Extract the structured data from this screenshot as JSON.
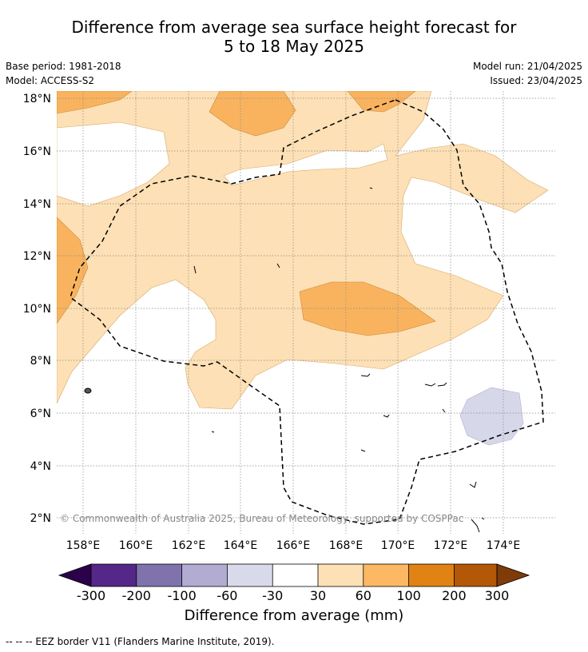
{
  "title": {
    "line1": "Difference from average sea surface height forecast for",
    "line2": "5 to 18 May 2025"
  },
  "meta": {
    "base_period": "Base period: 1981-2018",
    "model": "Model: ACCESS-S2",
    "model_run": "Model run: 21/04/2025",
    "issued": "Issued: 23/04/2025"
  },
  "map": {
    "lat_range": [
      1.4,
      18.3
    ],
    "lon_range": [
      157.0,
      175.0
    ],
    "lat_ticks": [
      "18°N",
      "16°N",
      "14°N",
      "12°N",
      "10°N",
      "8°N",
      "6°N",
      "4°N",
      "2°N"
    ],
    "lon_ticks": [
      "158°E",
      "160°E",
      "162°E",
      "164°E",
      "166°E",
      "168°E",
      "170°E",
      "172°E",
      "174°E"
    ],
    "copyright": "© Commonwealth of Australia 2025, Bureau of Meteorology, supported by COSPPac",
    "colors": {
      "c_30_60": "#fde0b5",
      "c_60_100": "#f9b35f",
      "c_m60_m30": "#d7d7ea",
      "coast": "#000000",
      "grid": "#888888"
    }
  },
  "colorbar": {
    "labels": [
      "-300",
      "-200",
      "-100",
      "-60",
      "-30",
      "30",
      "60",
      "100",
      "200",
      "300"
    ],
    "colors": [
      "#2d004b",
      "#542788",
      "#8073ac",
      "#b2abd2",
      "#d8daeb",
      "#ffffff",
      "#fee0b6",
      "#fdb863",
      "#e08214",
      "#b35806",
      "#7f3b08"
    ],
    "title": "Difference from average (mm)"
  },
  "footer": "--  --  -- EEZ border V11 (Flanders Marine Institute, 2019)."
}
